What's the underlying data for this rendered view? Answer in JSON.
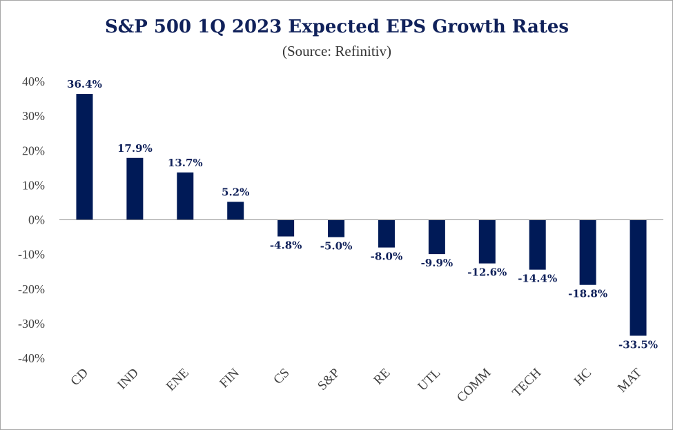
{
  "chart_data": {
    "type": "bar",
    "title": "S&P 500 1Q 2023 Expected EPS Growth Rates",
    "subtitle": "(Source: Refinitiv)",
    "categories": [
      "CD",
      "IND",
      "ENE",
      "FIN",
      "CS",
      "S&P",
      "RE",
      "UTL",
      "COMM",
      "TECH",
      "HC",
      "MAT"
    ],
    "values": [
      36.4,
      17.9,
      13.7,
      5.2,
      -4.8,
      -5.0,
      -8.0,
      -9.9,
      -12.6,
      -14.4,
      -18.8,
      -33.5
    ],
    "data_labels": [
      "36.4%",
      "17.9%",
      "13.7%",
      "5.2%",
      "-4.8%",
      "-5.0%",
      "-8.0%",
      "-9.9%",
      "-12.6%",
      "-14.4%",
      "-18.8%",
      "-33.5%"
    ],
    "ylim": [
      -40,
      40
    ],
    "yticks": [
      40,
      30,
      20,
      10,
      0,
      -10,
      -20,
      -30,
      -40
    ],
    "ytick_labels": [
      "40%",
      "30%",
      "20%",
      "10%",
      "0%",
      "-10%",
      "-20%",
      "-30%",
      "-40%"
    ],
    "xlabel": "",
    "ylabel": "",
    "grid": false,
    "legend": "none",
    "bar_color": "#001a57",
    "text_color": "#10215a"
  }
}
